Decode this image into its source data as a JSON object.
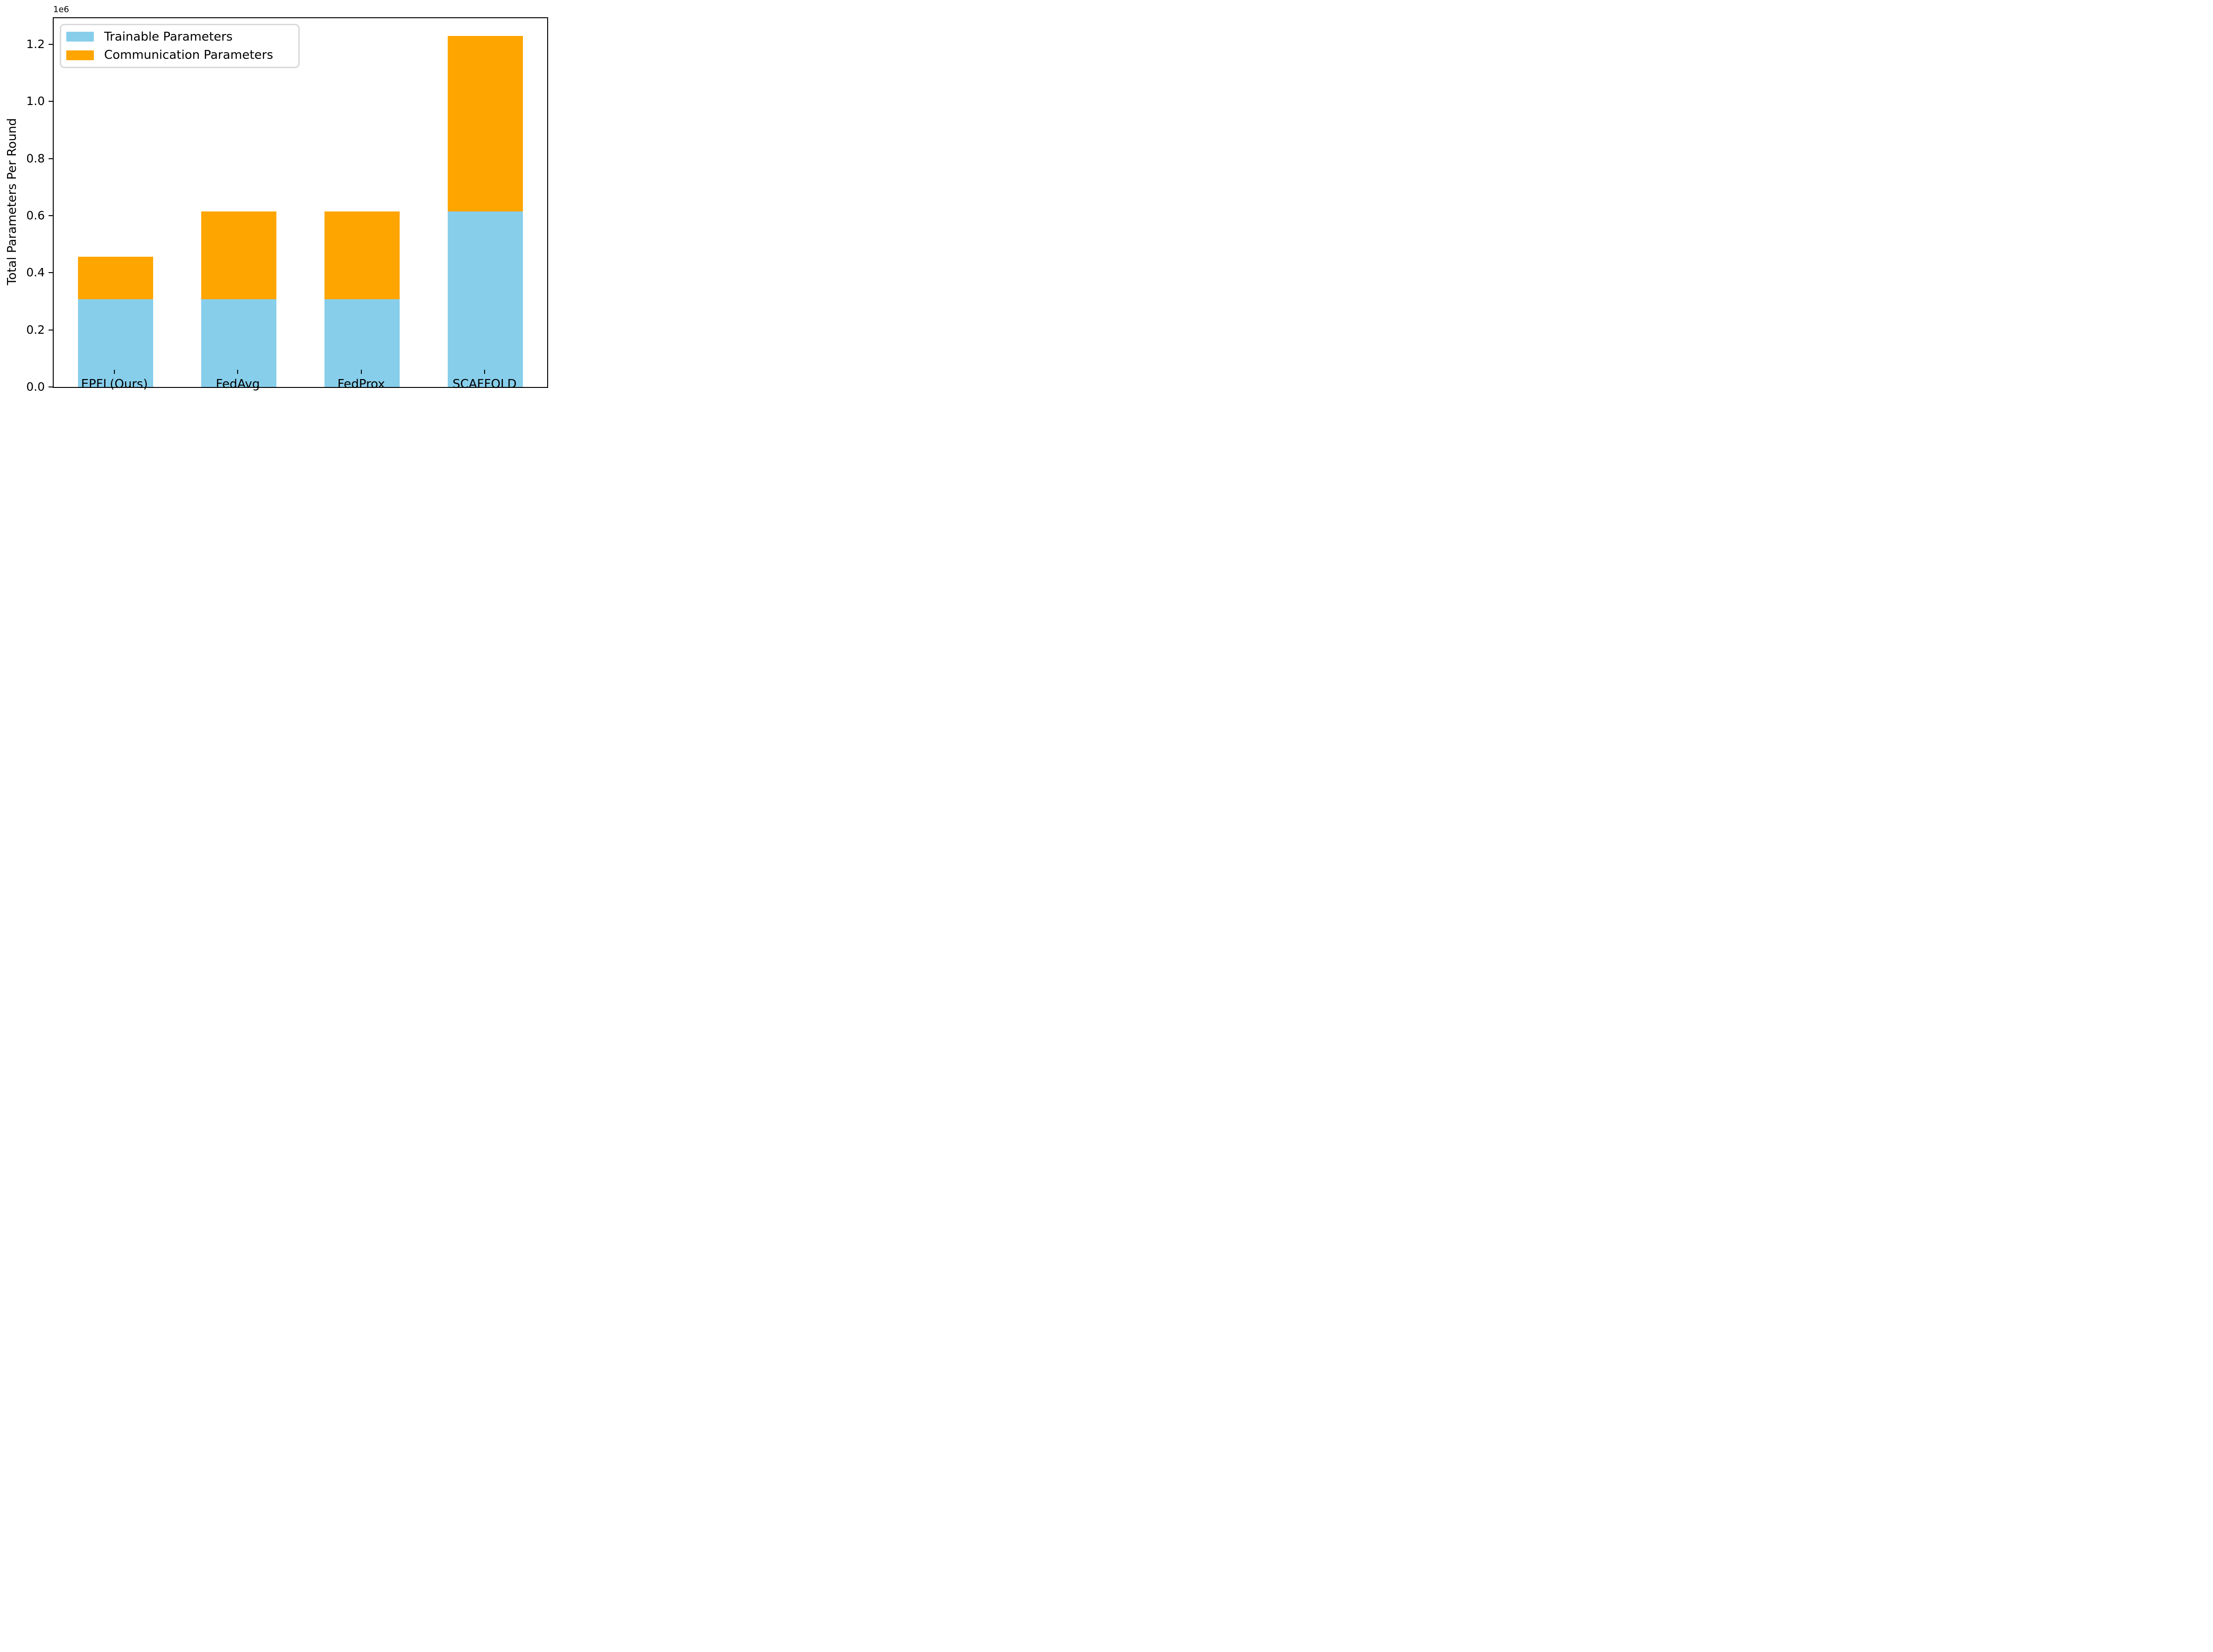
{
  "figure": {
    "background": "#ffffff",
    "offset_label": "1e6",
    "ylabel": "Total Parameters Per Round"
  },
  "legend": {
    "items": [
      {
        "label": "Trainable Parameters",
        "color": "#87CEEB"
      },
      {
        "label": "Communication Parameters",
        "color": "#FFA500"
      }
    ]
  },
  "chart_data": {
    "type": "bar",
    "stacked": true,
    "title": "",
    "xlabel": "",
    "ylabel": "Total Parameters Per Round",
    "categories": [
      "EPFL(Ours)",
      "FedAvg",
      "FedProx",
      "SCAFFOLD"
    ],
    "series": [
      {
        "name": "Trainable Parameters",
        "color": "#87CEEB",
        "values": [
          307700,
          307700,
          307700,
          615100
        ]
      },
      {
        "name": "Communication Parameters",
        "color": "#FFA500",
        "values": [
          147700,
          307400,
          307400,
          614900
        ]
      }
    ],
    "totals": [
      455400,
      615100,
      615100,
      1230000
    ],
    "ylim": [
      0,
      1291500
    ],
    "yticks": [
      0,
      200000,
      400000,
      600000,
      800000,
      1000000,
      1200000
    ],
    "ytick_labels": [
      "0.0",
      "0.2",
      "0.4",
      "0.6",
      "0.8",
      "1.0",
      "1.2"
    ],
    "y_offset_text": "1e6",
    "grid": false,
    "legend_position": "upper left",
    "bar_width_fraction": 0.61
  }
}
